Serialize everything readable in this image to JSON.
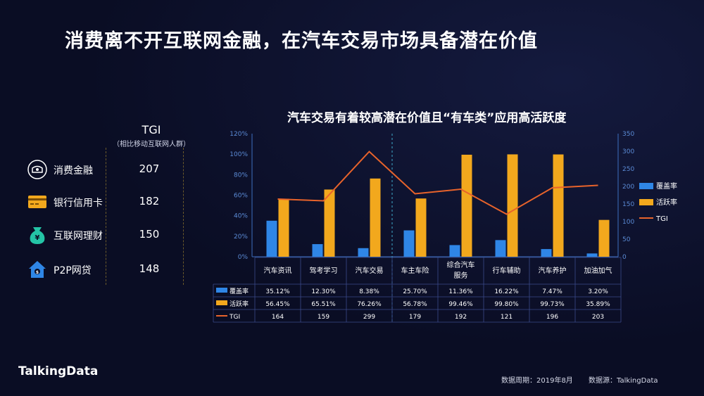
{
  "header": {
    "title": "消费离不开互联网金融，在汽车交易市场具备潜在价值"
  },
  "tgi_panel": {
    "head": "TGI",
    "subhead": "（相比移动互联网人群）",
    "items": [
      {
        "label": "消费金融",
        "value": "207",
        "icon": "wallet-icon"
      },
      {
        "label": "银行信用卡",
        "value": "182",
        "icon": "credit-card-icon"
      },
      {
        "label": "互联网理财",
        "value": "150",
        "icon": "money-bag-icon"
      },
      {
        "label": "P2P网贷",
        "value": "148",
        "icon": "house-icon"
      }
    ]
  },
  "colors": {
    "coverage": "#2f86e6",
    "activity": "#f2a81d",
    "tgi": "#e8632b",
    "axis": "#3d6fbf"
  },
  "chart_data": {
    "type": "bar",
    "title": "汽车交易有着较高潜在价值且“有车类”应用高活跃度",
    "categories": [
      "汽车资讯",
      "驾考学习",
      "汽车交易",
      "车主车险",
      "综合汽车服务",
      "行车辅助",
      "汽车养护",
      "加油加气"
    ],
    "left_axis": {
      "ylim": [
        0,
        120
      ],
      "ticks": [
        "0%",
        "20%",
        "40%",
        "60%",
        "80%",
        "100%",
        "120%"
      ]
    },
    "right_axis": {
      "ylim": [
        0,
        350
      ],
      "ticks": [
        "0",
        "50",
        "100",
        "150",
        "200",
        "250",
        "300",
        "350"
      ]
    },
    "series": [
      {
        "name": "覆盖率",
        "type": "bar",
        "axis": "left",
        "values": [
          35.12,
          12.3,
          8.38,
          25.7,
          11.36,
          16.22,
          7.47,
          3.2
        ],
        "labels": [
          "35.12%",
          "12.30%",
          "8.38%",
          "25.70%",
          "11.36%",
          "16.22%",
          "7.47%",
          "3.20%"
        ]
      },
      {
        "name": "活跃率",
        "type": "bar",
        "axis": "left",
        "values": [
          56.45,
          65.51,
          76.26,
          56.78,
          99.46,
          99.8,
          99.73,
          35.89
        ],
        "labels": [
          "56.45%",
          "65.51%",
          "76.26%",
          "56.78%",
          "99.46%",
          "99.80%",
          "99.73%",
          "35.89%"
        ]
      },
      {
        "name": "TGI",
        "type": "line",
        "axis": "right",
        "values": [
          164,
          159,
          299,
          179,
          192,
          121,
          196,
          203
        ],
        "labels": [
          "164",
          "159",
          "299",
          "179",
          "192",
          "121",
          "196",
          "203"
        ]
      }
    ]
  },
  "footer": {
    "logo": "TalkingData",
    "period": "数据周期：2019年8月",
    "source": "数据源：TalkingData"
  }
}
